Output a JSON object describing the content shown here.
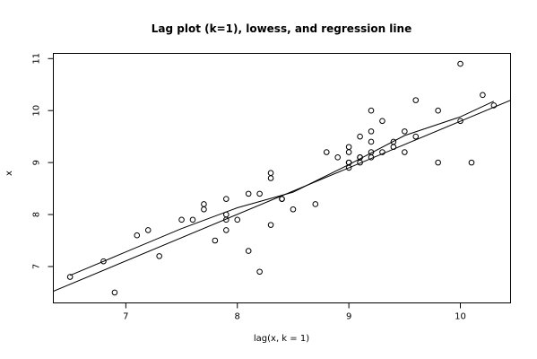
{
  "chart_data": {
    "type": "scatter",
    "title": "Lag plot (k=1), lowess, and regression line",
    "xlabel": "lag(x, k = 1)",
    "ylabel": "x",
    "xlim": [
      6.35,
      10.45
    ],
    "ylim": [
      6.3,
      11.1
    ],
    "x_ticks": [
      7,
      8,
      9,
      10
    ],
    "y_ticks": [
      7,
      8,
      9,
      10,
      11
    ],
    "grid": false,
    "points": [
      [
        6.5,
        6.8
      ],
      [
        6.8,
        7.1
      ],
      [
        6.9,
        6.5
      ],
      [
        7.1,
        7.6
      ],
      [
        7.2,
        7.7
      ],
      [
        7.3,
        7.2
      ],
      [
        7.5,
        7.9
      ],
      [
        7.6,
        7.9
      ],
      [
        7.7,
        8.1
      ],
      [
        7.7,
        8.2
      ],
      [
        7.8,
        7.5
      ],
      [
        7.9,
        8.0
      ],
      [
        7.9,
        7.9
      ],
      [
        7.9,
        7.7
      ],
      [
        7.9,
        8.3
      ],
      [
        8.0,
        7.9
      ],
      [
        8.1,
        8.4
      ],
      [
        8.1,
        7.3
      ],
      [
        8.2,
        8.4
      ],
      [
        8.2,
        6.9
      ],
      [
        8.3,
        8.8
      ],
      [
        8.3,
        8.7
      ],
      [
        8.3,
        7.8
      ],
      [
        8.4,
        8.3
      ],
      [
        8.4,
        8.3
      ],
      [
        8.5,
        8.1
      ],
      [
        8.7,
        8.2
      ],
      [
        8.8,
        9.2
      ],
      [
        8.9,
        9.1
      ],
      [
        9.0,
        9.3
      ],
      [
        9.0,
        9.2
      ],
      [
        9.0,
        9.0
      ],
      [
        9.0,
        9.0
      ],
      [
        9.0,
        8.9
      ],
      [
        9.1,
        9.1
      ],
      [
        9.1,
        9.1
      ],
      [
        9.1,
        9.0
      ],
      [
        9.1,
        9.5
      ],
      [
        9.2,
        10.0
      ],
      [
        9.2,
        9.6
      ],
      [
        9.2,
        9.4
      ],
      [
        9.2,
        9.2
      ],
      [
        9.2,
        9.1
      ],
      [
        9.3,
        9.8
      ],
      [
        9.3,
        9.2
      ],
      [
        9.4,
        9.4
      ],
      [
        9.4,
        9.3
      ],
      [
        9.5,
        9.6
      ],
      [
        9.5,
        9.2
      ],
      [
        9.6,
        10.2
      ],
      [
        9.6,
        9.5
      ],
      [
        9.8,
        10.0
      ],
      [
        9.8,
        9.0
      ],
      [
        10.0,
        10.9
      ],
      [
        10.0,
        9.8
      ],
      [
        10.1,
        9.0
      ],
      [
        10.2,
        10.3
      ],
      [
        10.3,
        10.1
      ]
    ],
    "regression": {
      "intercept": 0.835,
      "slope": 0.896
    },
    "lowess": [
      [
        6.5,
        6.83
      ],
      [
        7.0,
        7.28
      ],
      [
        7.5,
        7.73
      ],
      [
        8.0,
        8.13
      ],
      [
        8.5,
        8.43
      ],
      [
        9.0,
        8.96
      ],
      [
        9.5,
        9.52
      ],
      [
        10.0,
        9.88
      ],
      [
        10.3,
        10.18
      ]
    ]
  }
}
